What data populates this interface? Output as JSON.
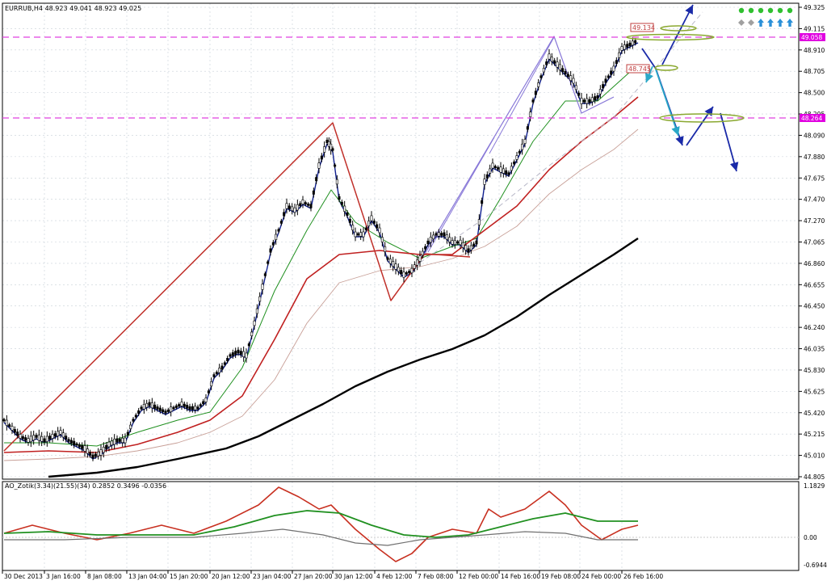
{
  "chart": {
    "symbol_header": "EURRUB,H4  48.923 49.041 48.923 49.025",
    "price_axis": {
      "ticks": [
        "49.325",
        "49.115",
        "48.910",
        "48.705",
        "48.500",
        "48.295",
        "48.090",
        "47.880",
        "47.675",
        "47.470",
        "47.270",
        "47.065",
        "46.860",
        "46.655",
        "46.450",
        "46.240",
        "46.035",
        "45.830",
        "45.625",
        "45.420",
        "45.215",
        "45.010",
        "44.805"
      ],
      "levels": {
        "upper": "49.058",
        "lower": "48.264"
      },
      "price_tags": {
        "top": "49.134",
        "mid": "48.745"
      }
    },
    "time_axis": {
      "labels": [
        "30 Dec 2013",
        "3 Jan 16:00",
        "8 Jan 08:00",
        "13 Jan 04:00",
        "15 Jan 20:00",
        "20 Jan 12:00",
        "23 Jan 04:00",
        "27 Jan 20:00",
        "30 Jan 12:00",
        "4 Feb 12:00",
        "7 Feb 08:00",
        "12 Feb 00:00",
        "14 Feb 16:00",
        "19 Feb 08:00",
        "24 Feb 00:00",
        "26 Feb 16:00"
      ]
    },
    "indicator": {
      "title": "AO_Zotik(3.34)(21.55)(34) 0.2852 0.3496 -0.0356",
      "ticks": [
        "1.1829",
        "0.00",
        "-0.6944"
      ]
    }
  },
  "colors": {
    "background": "#ffffff",
    "grid": "#c8d0d8",
    "level_line": "#e040e0",
    "level_tag_bg": "#e000e0",
    "zigzag_red": "#c0302a",
    "zigzag_purple": "#8878d8",
    "ma_black": "#000000",
    "ma_red": "#c02020",
    "ma_green": "#209020",
    "ma_blue": "#102090",
    "arrow_blue": "#1a2aa8",
    "arrow_cyan": "#2aa8c8",
    "ellipse_green": "#8aa830"
  },
  "icons": {
    "dots": "green-dot-icon",
    "diamonds": "gray-diamond-icon",
    "arrows": "up-arrow-icon"
  }
}
